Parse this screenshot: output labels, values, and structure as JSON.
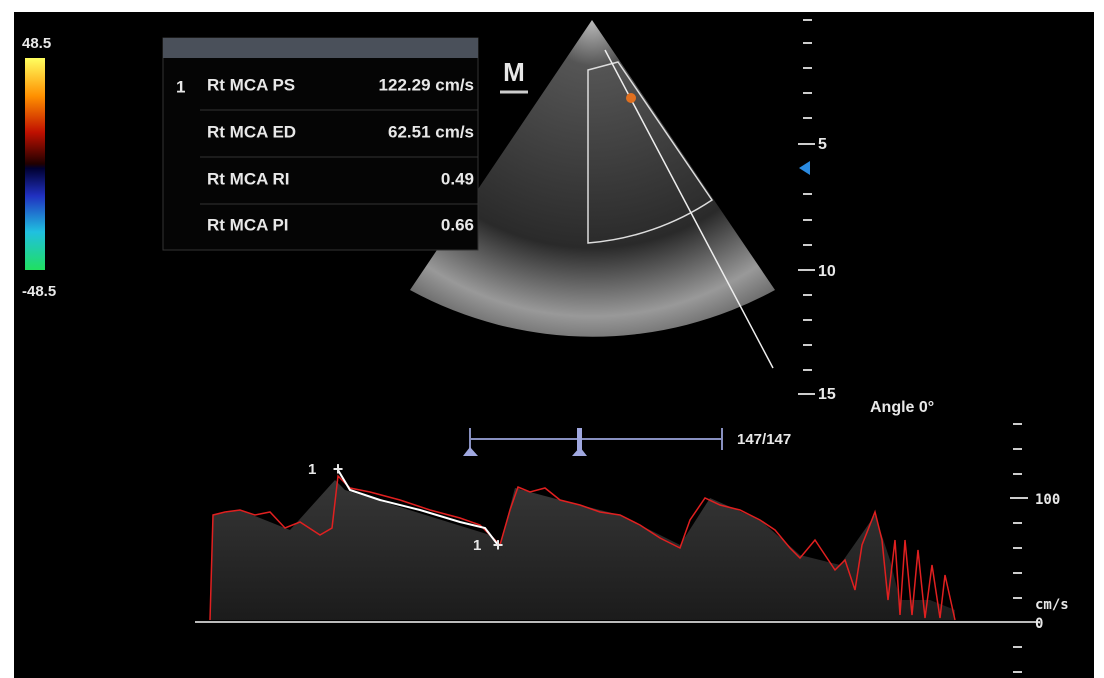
{
  "color_scale": {
    "max": "48.5",
    "min": "-48.5"
  },
  "measurements": {
    "rows": [
      {
        "index": "1",
        "label": "Rt MCA PS",
        "value": "122.29 cm/s"
      },
      {
        "label": "Rt MCA ED",
        "value": "62.51 cm/s"
      },
      {
        "label": "Rt MCA RI",
        "value": "0.49"
      },
      {
        "label": "Rt MCA PI",
        "value": "0.66"
      }
    ]
  },
  "logo": "M",
  "depth_scale": {
    "labels": [
      "5",
      "10",
      "15"
    ]
  },
  "angle": "Angle 0°",
  "frame_counter": "147/147",
  "velocity_scale": {
    "labels": [
      "100",
      "0"
    ],
    "unit": "cm/s"
  },
  "markers": [
    "1",
    "1"
  ]
}
